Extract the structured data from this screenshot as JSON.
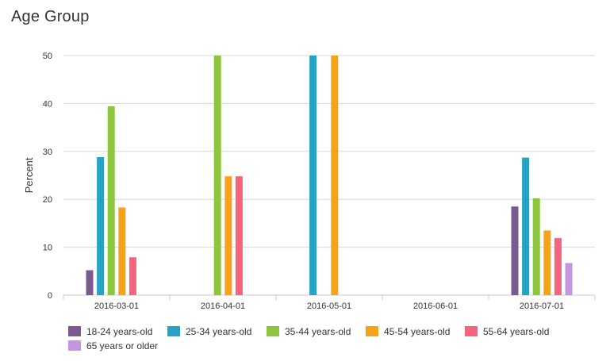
{
  "page": {
    "title": "Age Group"
  },
  "chart_data": {
    "type": "bar",
    "title": "Age Group",
    "xlabel": "",
    "ylabel": "Percent",
    "categories": [
      "2016-03-01",
      "2016-04-01",
      "2016-05-01",
      "2016-06-01",
      "2016-07-01"
    ],
    "ylim": [
      0,
      50
    ],
    "yticks": [
      0,
      10,
      20,
      30,
      40,
      50
    ],
    "grid": true,
    "legend": "bottom",
    "series": [
      {
        "name": "18-24 years-old",
        "color": "#7b5a8f",
        "values": [
          5.2,
          0,
          0,
          0,
          18.5
        ]
      },
      {
        "name": "25-34 years-old",
        "color": "#26a3c4",
        "values": [
          28.8,
          0,
          50,
          0,
          28.7
        ]
      },
      {
        "name": "35-44 years-old",
        "color": "#8cc63f",
        "values": [
          39.4,
          50,
          0,
          0,
          20.2
        ]
      },
      {
        "name": "45-54 years-old",
        "color": "#f7a21b",
        "values": [
          18.3,
          24.8,
          50,
          0,
          13.5
        ]
      },
      {
        "name": "55-64 years-old",
        "color": "#f4647f",
        "values": [
          7.9,
          24.8,
          0,
          0,
          11.9
        ]
      },
      {
        "name": "65 years or older",
        "color": "#c495e0",
        "values": [
          0,
          0,
          0,
          0,
          6.7
        ]
      }
    ]
  }
}
